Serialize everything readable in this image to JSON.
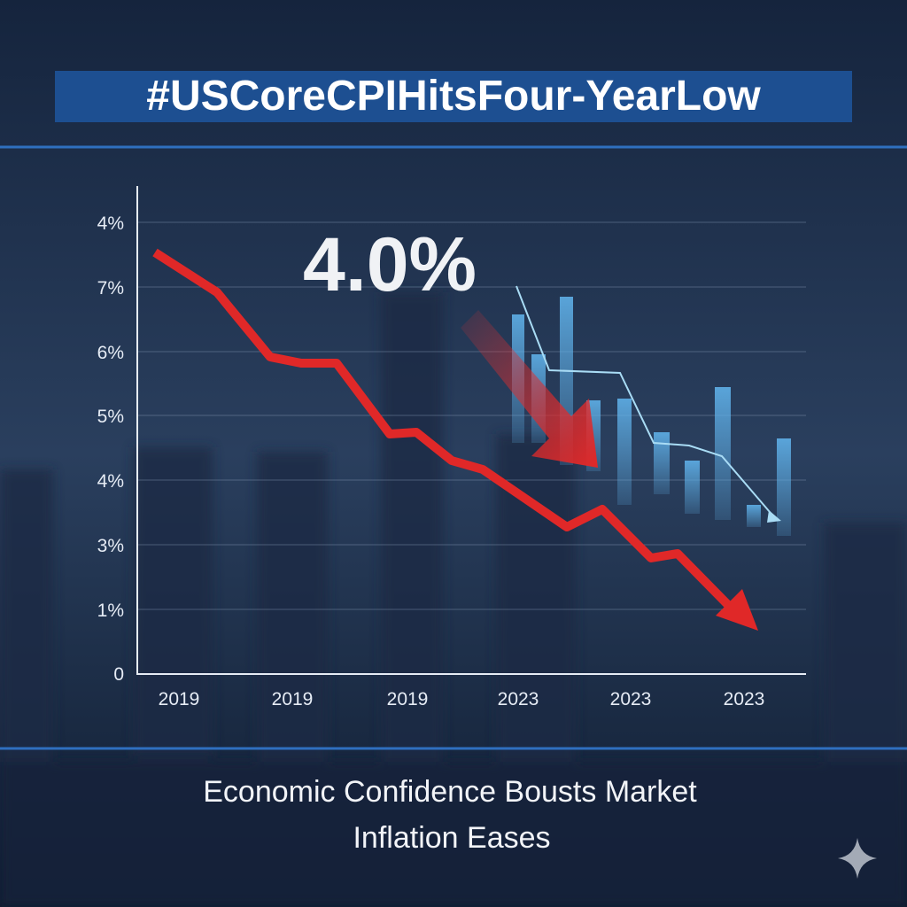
{
  "hashtag": "#USCoreCPIHitsFour-YearLow",
  "headline_value": "4.0%",
  "y_axis_labels": [
    "4%",
    "7%",
    "6%",
    "5%",
    "4%",
    "3%",
    "1%",
    "0"
  ],
  "x_axis_labels": [
    "2019",
    "2019",
    "2019",
    "2023",
    "2023",
    "2023"
  ],
  "caption": [
    "Economic Confidence Bousts Market",
    "Inflation Eases"
  ]
}
